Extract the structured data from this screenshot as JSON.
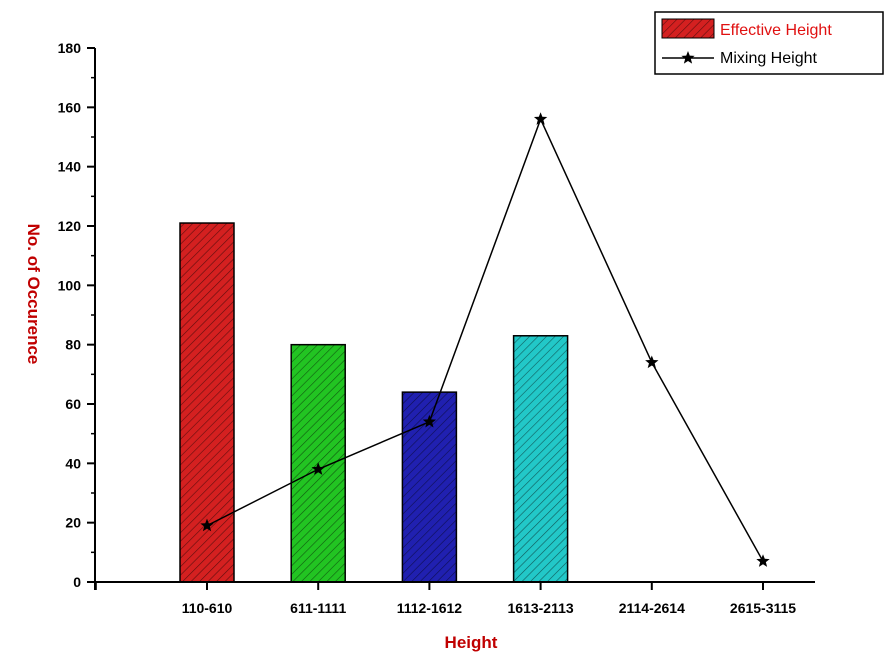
{
  "chart_data": {
    "type": "bar",
    "categories": [
      "110-610",
      "611-1111",
      "1112-1612",
      "1613-2113",
      "2114-2614",
      "2615-3115"
    ],
    "xlabel": "Height",
    "ylabel": "No. of Occurence",
    "ylim": [
      0,
      180
    ],
    "yticks": [
      0,
      20,
      40,
      60,
      80,
      100,
      120,
      140,
      160,
      180
    ],
    "ytick_labels": [
      "0",
      "20",
      "40",
      "60",
      "80",
      "100",
      "120",
      "140",
      "160",
      "180"
    ],
    "grid": false,
    "legend_position": "top-right",
    "series": [
      {
        "name": "Effective Height",
        "type": "bar",
        "values": [
          121,
          80,
          64,
          83,
          null,
          null
        ],
        "colors": [
          "#d42020",
          "#22c422",
          "#2020b0",
          "#22c8c8"
        ]
      },
      {
        "name": "Mixing Height",
        "type": "line",
        "marker": "star",
        "color": "#000000",
        "values": [
          19,
          38,
          54,
          156,
          74,
          7
        ]
      }
    ]
  }
}
